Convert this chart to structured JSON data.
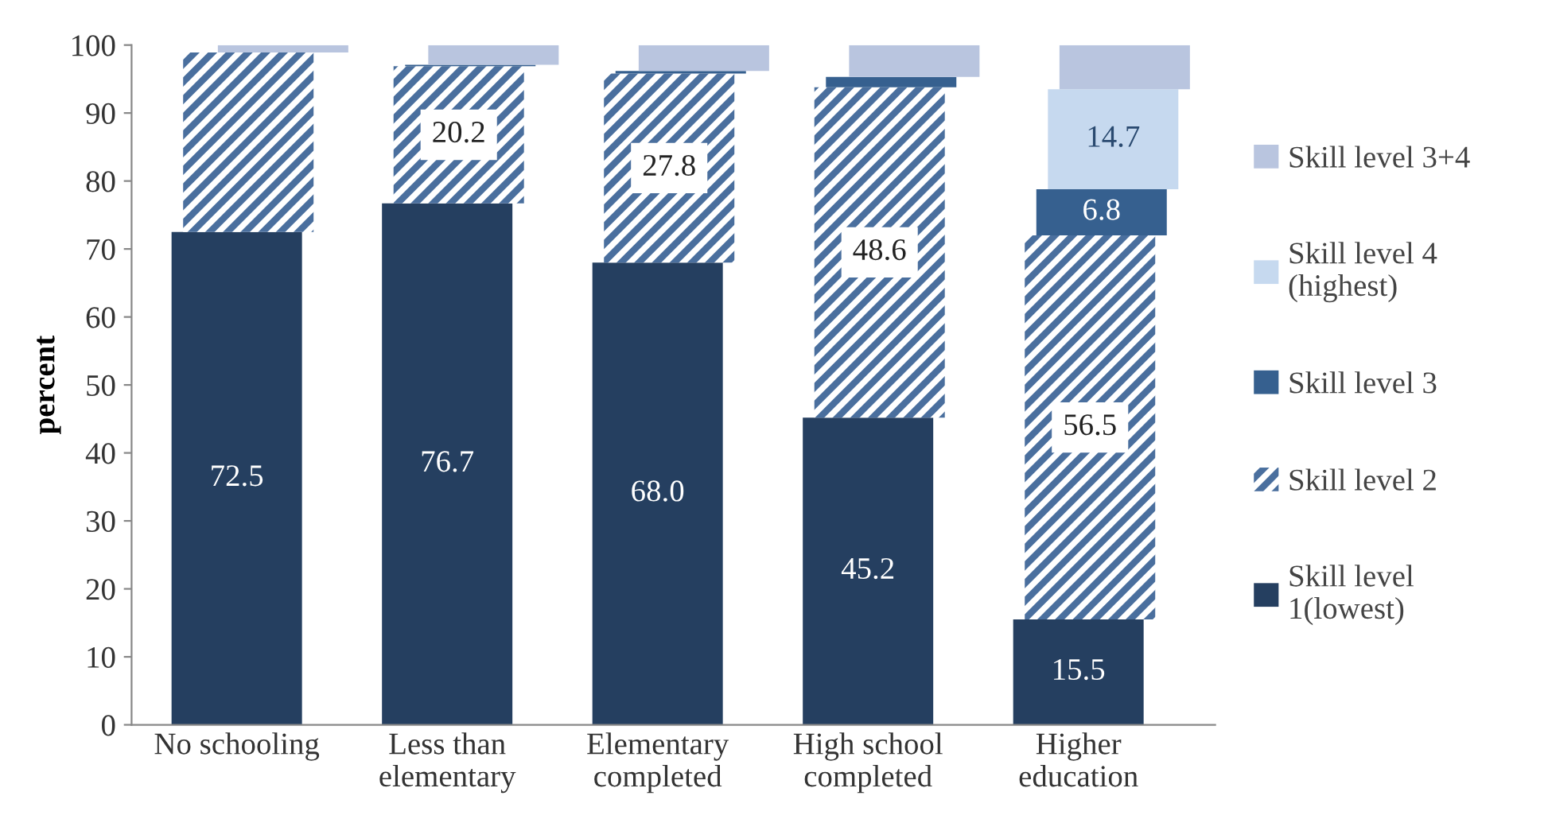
{
  "chart_data": {
    "type": "bar",
    "stacked": true,
    "ylabel": "percent",
    "categories": [
      "No schooling",
      "Less than\nelementary",
      "Elementary\ncompleted",
      "High school\ncompleted",
      "Higher\neducation"
    ],
    "ylim": [
      0,
      100
    ],
    "yticks": [
      0,
      10,
      20,
      30,
      40,
      50,
      60,
      70,
      80,
      90,
      100
    ],
    "grid": false,
    "legend": "right",
    "series": [
      {
        "name": "Skill level\n1(lowest)",
        "color": "#253f60",
        "values": [
          72.5,
          76.7,
          68.0,
          45.2,
          15.5
        ],
        "value_labels": [
          "72.5",
          "76.7",
          "68.0",
          "45.2",
          "15.5"
        ]
      },
      {
        "name": "Skill level 2",
        "color": "#4a6f9e",
        "values": [
          26.4,
          20.2,
          27.8,
          48.6,
          56.5
        ],
        "value_labels": [
          null,
          "20.2",
          "27.8",
          "48.6",
          "56.5"
        ]
      },
      {
        "name": "Skill level 3",
        "color": "#36608f",
        "values": [
          null,
          0.2,
          0.4,
          1.5,
          6.8
        ],
        "value_labels": [
          null,
          null,
          null,
          null,
          "6.8"
        ]
      },
      {
        "name": "Skill level 4\n(highest)",
        "color": "#c6d9ef",
        "values": [
          null,
          null,
          null,
          null,
          14.7
        ],
        "value_labels": [
          null,
          null,
          null,
          null,
          "14.7"
        ]
      },
      {
        "name": "Skill level 3+4",
        "color": "#b9c5df",
        "values": [
          1.1,
          2.9,
          3.8,
          4.7,
          6.5
        ],
        "value_labels": [
          null,
          null,
          null,
          null,
          null
        ]
      }
    ]
  }
}
